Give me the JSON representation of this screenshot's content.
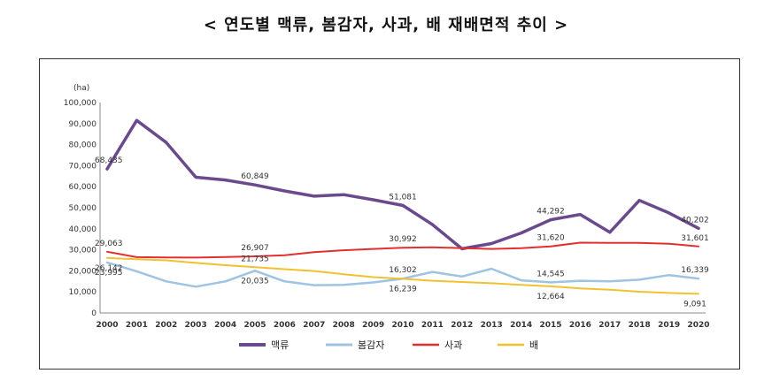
{
  "title": "< 연도별 맥류, 봄감자, 사과, 배 재배면적 추이 >",
  "chart_data": {
    "type": "line",
    "title": "< 연도별 맥류, 봄감자, 사과, 배 재배면적 추이 >",
    "ylabel": "(ha)",
    "ylim": [
      0,
      100000
    ],
    "yticks": [
      0,
      10000,
      20000,
      30000,
      40000,
      50000,
      60000,
      70000,
      80000,
      90000,
      100000
    ],
    "ytick_labels": [
      "0",
      "10,000",
      "20,000",
      "30,000",
      "40,000",
      "50,000",
      "60,000",
      "70,000",
      "80,000",
      "90,000",
      "100,000"
    ],
    "x": [
      "2000",
      "2001",
      "2002",
      "2003",
      "2004",
      "2005",
      "2006",
      "2007",
      "2008",
      "2009",
      "2010",
      "2011",
      "2012",
      "2013",
      "2014",
      "2015",
      "2016",
      "2017",
      "2018",
      "2019",
      "2020"
    ],
    "legend_position": "bottom",
    "grid": false,
    "series": [
      {
        "name": "맥류",
        "color": "#6a4a8c",
        "width": 3.5,
        "values": [
          68435,
          91500,
          81000,
          64500,
          63200,
          60849,
          58000,
          55500,
          56200,
          53800,
          51081,
          42000,
          30500,
          33000,
          38000,
          44292,
          46800,
          38300,
          53500,
          47500,
          40202
        ]
      },
      {
        "name": "봄감자",
        "color": "#9fc3e2",
        "width": 2.5,
        "values": [
          23995,
          19800,
          15000,
          12500,
          15000,
          20035,
          15000,
          13200,
          13300,
          14500,
          16302,
          19500,
          17300,
          21000,
          15500,
          14545,
          15300,
          15000,
          15800,
          18000,
          16339
        ]
      },
      {
        "name": "사과",
        "color": "#e23030",
        "width": 2,
        "values": [
          29063,
          26500,
          26400,
          26300,
          26600,
          26907,
          27400,
          28900,
          29800,
          30400,
          30992,
          31200,
          30800,
          30400,
          30800,
          31620,
          33400,
          33300,
          33300,
          32900,
          31601
        ]
      },
      {
        "name": "배",
        "color": "#f2c130",
        "width": 2,
        "values": [
          26142,
          25500,
          25000,
          23800,
          22700,
          21735,
          20800,
          19900,
          18400,
          17000,
          16239,
          15300,
          14700,
          14100,
          13300,
          12664,
          11700,
          11000,
          10100,
          9500,
          9091
        ]
      }
    ],
    "annotations": [
      {
        "series": "맥류",
        "x": "2000",
        "label": "68,435",
        "pos": "above"
      },
      {
        "series": "맥류",
        "x": "2005",
        "label": "60,849",
        "pos": "above"
      },
      {
        "series": "맥류",
        "x": "2010",
        "label": "51,081",
        "pos": "above"
      },
      {
        "series": "맥류",
        "x": "2015",
        "label": "44,292",
        "pos": "above"
      },
      {
        "series": "맥류",
        "x": "2020",
        "label": "40,202",
        "pos": "above"
      },
      {
        "series": "봄감자",
        "x": "2000",
        "label": "23,995",
        "pos": "below"
      },
      {
        "series": "봄감자",
        "x": "2005",
        "label": "20,035",
        "pos": "below"
      },
      {
        "series": "봄감자",
        "x": "2010",
        "label": "16,302",
        "pos": "above"
      },
      {
        "series": "봄감자",
        "x": "2015",
        "label": "14,545",
        "pos": "above"
      },
      {
        "series": "봄감자",
        "x": "2020",
        "label": "16,339",
        "pos": "above"
      },
      {
        "series": "사과",
        "x": "2000",
        "label": "29,063",
        "pos": "above"
      },
      {
        "series": "사과",
        "x": "2005",
        "label": "26,907",
        "pos": "above"
      },
      {
        "series": "사과",
        "x": "2010",
        "label": "30,992",
        "pos": "above"
      },
      {
        "series": "사과",
        "x": "2015",
        "label": "31,620",
        "pos": "above"
      },
      {
        "series": "사과",
        "x": "2020",
        "label": "31,601",
        "pos": "above"
      },
      {
        "series": "배",
        "x": "2000",
        "label": "26,142",
        "pos": "below"
      },
      {
        "series": "배",
        "x": "2005",
        "label": "21,735",
        "pos": "above"
      },
      {
        "series": "배",
        "x": "2010",
        "label": "16,239",
        "pos": "below"
      },
      {
        "series": "배",
        "x": "2015",
        "label": "12,664",
        "pos": "below"
      },
      {
        "series": "배",
        "x": "2020",
        "label": "9,091",
        "pos": "below"
      }
    ]
  }
}
